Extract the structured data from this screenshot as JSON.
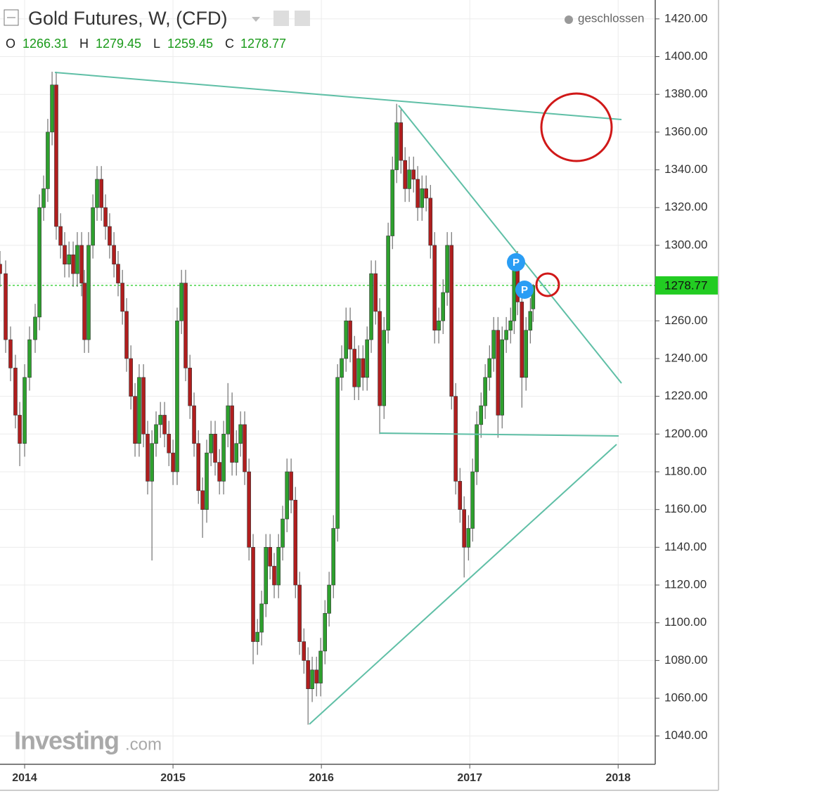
{
  "chart_data": {
    "type": "candlestick",
    "title": "Gold Futures, W, (CFD)",
    "status": "geschlossen",
    "ohlc_labels": [
      "O",
      "H",
      "L",
      "C"
    ],
    "x": [
      2013.834,
      2013.872,
      2013.905,
      2013.938,
      2013.967,
      2014.0,
      2014.033,
      2014.071,
      2014.1,
      2014.128,
      2014.156,
      2014.185,
      2014.213,
      2014.242,
      2014.27,
      2014.299,
      2014.327,
      2014.355,
      2014.384,
      2014.403,
      2014.431,
      2014.46,
      2014.488,
      2014.517,
      2014.545,
      2014.573,
      2014.602,
      2014.63,
      2014.659,
      2014.687,
      2014.716,
      2014.744,
      2014.772,
      2014.801,
      2014.829,
      2014.858,
      2014.886,
      2014.915,
      2014.943,
      2014.972,
      2015.0,
      2015.028,
      2015.057,
      2015.085,
      2015.114,
      2015.142,
      2015.171,
      2015.199,
      2015.227,
      2015.256,
      2015.284,
      2015.313,
      2015.341,
      2015.37,
      2015.398,
      2015.427,
      2015.455,
      2015.483,
      2015.512,
      2015.54,
      2015.569,
      2015.597,
      2015.626,
      2015.654,
      2015.682,
      2015.711,
      2015.739,
      2015.768,
      2015.796,
      2015.825,
      2015.853,
      2015.882,
      2015.91,
      2015.938,
      2015.967,
      2015.995,
      2016.024,
      2016.052,
      2016.081,
      2016.109,
      2016.137,
      2016.166,
      2016.194,
      2016.223,
      2016.251,
      2016.28,
      2016.308,
      2016.336,
      2016.365,
      2016.393,
      2016.422,
      2016.45,
      2016.479,
      2016.507,
      2016.536,
      2016.564,
      2016.592,
      2016.621,
      2016.649,
      2016.678,
      2016.706,
      2016.735,
      2016.763,
      2016.791,
      2016.82,
      2016.848,
      2016.877,
      2016.905,
      2016.934,
      2016.962,
      2016.991,
      2017.019,
      2017.047,
      2017.076,
      2017.104,
      2017.133,
      2017.161,
      2017.19,
      2017.218,
      2017.246,
      2017.275,
      2017.299,
      2017.322,
      2017.351,
      2017.379,
      2017.408,
      2017.427
    ],
    "open": [
      1290,
      1285,
      1250,
      1235,
      1210,
      1195,
      1230,
      1250,
      1262,
      1320,
      1330,
      1360,
      1385,
      1310,
      1300,
      1290,
      1295,
      1285,
      1300,
      1280,
      1250,
      1300,
      1320,
      1335,
      1320,
      1310,
      1300,
      1290,
      1280,
      1265,
      1240,
      1220,
      1195,
      1230,
      1200,
      1175,
      1195,
      1205,
      1210,
      1200,
      1190,
      1180,
      1260,
      1280,
      1235,
      1215,
      1195,
      1170,
      1160,
      1190,
      1200,
      1185,
      1175,
      1200,
      1215,
      1185,
      1195,
      1205,
      1180,
      1140,
      1090,
      1095,
      1110,
      1140,
      1130,
      1120,
      1140,
      1155,
      1180,
      1165,
      1120,
      1090,
      1080,
      1065,
      1075,
      1068,
      1085,
      1105,
      1120,
      1150,
      1230,
      1240,
      1260,
      1245,
      1225,
      1240,
      1230,
      1250,
      1285,
      1265,
      1215,
      1255,
      1305,
      1340,
      1365,
      1345,
      1330,
      1340,
      1335,
      1320,
      1330,
      1325,
      1300,
      1255,
      1260,
      1275,
      1300,
      1220,
      1175,
      1160,
      1140,
      1150,
      1180,
      1205,
      1215,
      1230,
      1240,
      1255,
      1210,
      1250,
      1255,
      1260,
      1290,
      1270,
      1230,
      1255,
      1266.31
    ],
    "high": [
      1297,
      1292,
      1257,
      1242,
      1217,
      1237,
      1257,
      1269,
      1327,
      1337,
      1367,
      1392,
      1392,
      1317,
      1307,
      1302,
      1302,
      1307,
      1307,
      1287,
      1307,
      1327,
      1342,
      1342,
      1327,
      1317,
      1307,
      1297,
      1287,
      1272,
      1247,
      1227,
      1237,
      1237,
      1207,
      1202,
      1212,
      1217,
      1217,
      1207,
      1197,
      1267,
      1287,
      1287,
      1242,
      1222,
      1202,
      1177,
      1197,
      1207,
      1207,
      1192,
      1207,
      1227,
      1222,
      1202,
      1212,
      1212,
      1187,
      1147,
      1102,
      1117,
      1147,
      1147,
      1137,
      1147,
      1162,
      1187,
      1187,
      1172,
      1127,
      1097,
      1087,
      1082,
      1082,
      1092,
      1112,
      1127,
      1157,
      1237,
      1247,
      1267,
      1267,
      1252,
      1247,
      1247,
      1257,
      1292,
      1292,
      1272,
      1262,
      1312,
      1347,
      1375,
      1372,
      1352,
      1347,
      1347,
      1342,
      1337,
      1337,
      1332,
      1307,
      1267,
      1282,
      1307,
      1307,
      1227,
      1182,
      1167,
      1157,
      1187,
      1212,
      1222,
      1237,
      1247,
      1262,
      1262,
      1257,
      1262,
      1267,
      1295,
      1297,
      1277,
      1262,
      1272,
      1279.45
    ],
    "low": [
      1278,
      1243,
      1228,
      1203,
      1183,
      1188,
      1223,
      1243,
      1255,
      1313,
      1323,
      1353,
      1303,
      1293,
      1283,
      1283,
      1278,
      1278,
      1273,
      1243,
      1243,
      1293,
      1313,
      1313,
      1303,
      1293,
      1283,
      1273,
      1258,
      1233,
      1213,
      1188,
      1188,
      1193,
      1168,
      1133,
      1188,
      1198,
      1193,
      1183,
      1173,
      1173,
      1253,
      1228,
      1208,
      1188,
      1163,
      1145,
      1153,
      1183,
      1178,
      1168,
      1168,
      1193,
      1178,
      1178,
      1188,
      1173,
      1133,
      1078,
      1083,
      1088,
      1103,
      1123,
      1113,
      1113,
      1133,
      1148,
      1158,
      1113,
      1083,
      1073,
      1046,
      1058,
      1061,
      1061,
      1078,
      1098,
      1113,
      1143,
      1223,
      1233,
      1238,
      1218,
      1218,
      1223,
      1223,
      1243,
      1258,
      1200,
      1208,
      1248,
      1298,
      1333,
      1338,
      1323,
      1323,
      1328,
      1313,
      1313,
      1318,
      1293,
      1248,
      1248,
      1253,
      1268,
      1213,
      1168,
      1153,
      1124,
      1133,
      1143,
      1173,
      1198,
      1208,
      1223,
      1233,
      1198,
      1203,
      1243,
      1248,
      1253,
      1263,
      1214,
      1223,
      1248,
      1259.45
    ],
    "close": [
      1285,
      1250,
      1235,
      1210,
      1195,
      1230,
      1250,
      1262,
      1320,
      1330,
      1360,
      1385,
      1310,
      1300,
      1290,
      1295,
      1285,
      1300,
      1280,
      1250,
      1300,
      1320,
      1335,
      1320,
      1310,
      1300,
      1290,
      1280,
      1265,
      1240,
      1220,
      1195,
      1230,
      1200,
      1175,
      1195,
      1205,
      1210,
      1200,
      1190,
      1180,
      1260,
      1280,
      1235,
      1215,
      1195,
      1170,
      1160,
      1190,
      1200,
      1185,
      1175,
      1200,
      1215,
      1185,
      1195,
      1205,
      1180,
      1140,
      1090,
      1095,
      1110,
      1140,
      1130,
      1120,
      1140,
      1155,
      1180,
      1165,
      1120,
      1090,
      1080,
      1065,
      1075,
      1068,
      1085,
      1105,
      1120,
      1150,
      1230,
      1240,
      1260,
      1245,
      1225,
      1240,
      1230,
      1250,
      1285,
      1265,
      1215,
      1255,
      1305,
      1340,
      1365,
      1345,
      1330,
      1340,
      1335,
      1320,
      1330,
      1325,
      1300,
      1255,
      1260,
      1275,
      1300,
      1220,
      1175,
      1160,
      1140,
      1150,
      1180,
      1205,
      1215,
      1230,
      1240,
      1255,
      1210,
      1250,
      1255,
      1260,
      1290,
      1270,
      1230,
      1255,
      1265,
      1278.77
    ],
    "up_color": "#2ea02e",
    "down_color": "#b01e1e",
    "xlim": [
      2013.834,
      2018.25
    ],
    "ylim": [
      1025,
      1430
    ],
    "xticks": [
      2014,
      2015,
      2016,
      2017,
      2018
    ],
    "yticks": [
      {
        "value": 1040,
        "label": "1040.00"
      },
      {
        "value": 1060,
        "label": "1060.00"
      },
      {
        "value": 1080,
        "label": "1080.00"
      },
      {
        "value": 1100,
        "label": "1100.00"
      },
      {
        "value": 1120,
        "label": "1120.00"
      },
      {
        "value": 1140,
        "label": "1140.00"
      },
      {
        "value": 1160,
        "label": "1160.00"
      },
      {
        "value": 1180,
        "label": "1180.00"
      },
      {
        "value": 1200,
        "label": "1200.00"
      },
      {
        "value": 1220,
        "label": "1220.00"
      },
      {
        "value": 1240,
        "label": "1240.00"
      },
      {
        "value": 1260,
        "label": "1260.00"
      },
      {
        "value": 1280,
        "label": "1280.00"
      },
      {
        "value": 1300,
        "label": "1300.00"
      },
      {
        "value": 1320,
        "label": "1320.00"
      },
      {
        "value": 1340,
        "label": "1340.00"
      },
      {
        "value": 1360,
        "label": "1360.00"
      },
      {
        "value": 1380,
        "label": "1380.00"
      },
      {
        "value": 1400,
        "label": "1400.00"
      },
      {
        "value": 1420,
        "label": "1420.00"
      }
    ],
    "grid": true,
    "last_price_line": true,
    "price_line_color": "#22cc22",
    "markers": [
      "P",
      "P"
    ],
    "watermark": [
      "Investing",
      ".com"
    ]
  }
}
